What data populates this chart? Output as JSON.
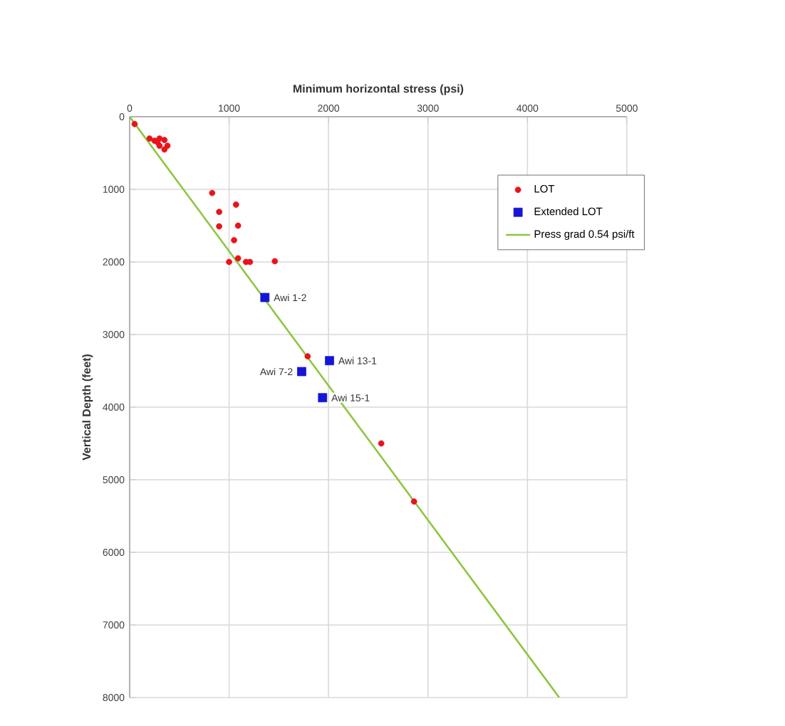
{
  "chart_data": {
    "type": "scatter",
    "xlabel": "Minimum horizontal stress (psi)",
    "ylabel": "Vertical Depth (feet)",
    "xlim": [
      0,
      5000
    ],
    "xticks": [
      0,
      1000,
      2000,
      3000,
      4000,
      5000
    ],
    "ylim": [
      8000,
      0
    ],
    "yticks": [
      0,
      1000,
      2000,
      3000,
      4000,
      5000,
      6000,
      7000,
      8000
    ],
    "grid": true,
    "legend": "top right",
    "series": [
      {
        "name": "LOT",
        "color": "#e8141b",
        "marker": "circle",
        "x": [
          50,
          200,
          250,
          300,
          350,
          380,
          350,
          300,
          280,
          830,
          900,
          900,
          1070,
          1090,
          1050,
          1000,
          1090,
          1170,
          1210,
          1460,
          1790,
          2530,
          2860
        ],
        "values": [
          100,
          300,
          330,
          300,
          320,
          400,
          450,
          400,
          350,
          1050,
          1310,
          1510,
          1210,
          1500,
          1700,
          2000,
          1950,
          2000,
          2000,
          1990,
          3300,
          4500,
          5300
        ]
      },
      {
        "name": "Extended LOT",
        "color": "#1515d8",
        "marker": "square",
        "x": [
          1360,
          2010,
          1730,
          1940
        ],
        "values": [
          2490,
          3360,
          3510,
          3870
        ]
      },
      {
        "name": "Press grad 0.54 psi/ft",
        "type": "line",
        "color": "#8dc63f",
        "marker": "none",
        "x": [
          0,
          4320
        ],
        "values": [
          0,
          8000
        ]
      }
    ],
    "annotations": [
      {
        "text": "Awi 1-2",
        "x": 1360,
        "y": 2490
      },
      {
        "text": "Awi 13-1",
        "x": 2010,
        "y": 3360
      },
      {
        "text": "Awi 7-2",
        "x": 1730,
        "y": 3510
      },
      {
        "text": "Awi 15-1",
        "x": 1940,
        "y": 3870
      }
    ]
  }
}
